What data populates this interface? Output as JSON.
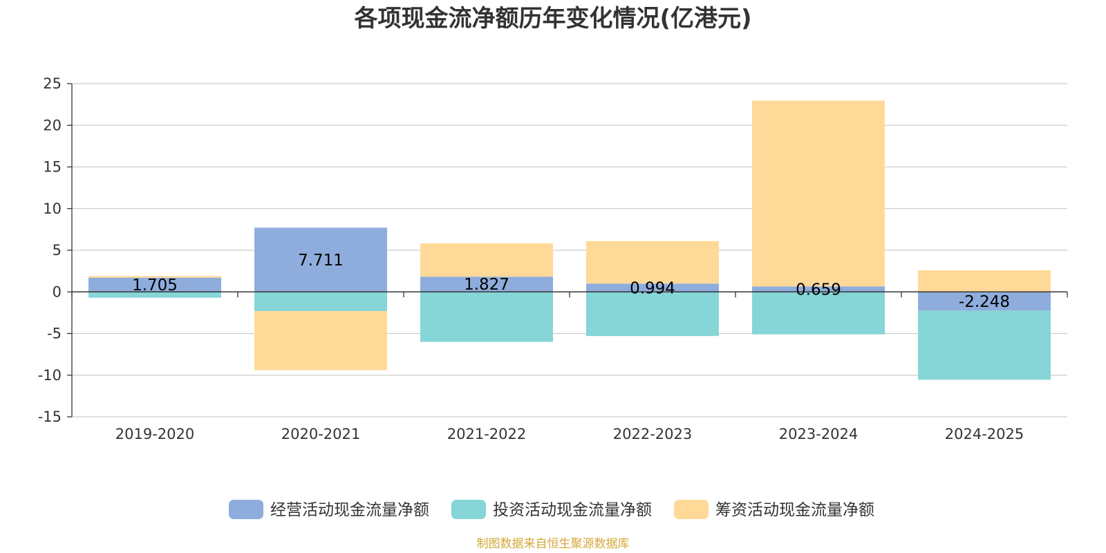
{
  "chart_data": {
    "type": "bar",
    "stacked": true,
    "title": "各项现金流净额历年变化情况(亿港元)",
    "categories": [
      "2019-2020",
      "2020-2021",
      "2021-2022",
      "2022-2023",
      "2023-2024",
      "2024-2025"
    ],
    "series": [
      {
        "name": "经营活动现金流量净额",
        "color": "#8eaddc",
        "values": [
          1.705,
          7.711,
          1.827,
          0.994,
          0.659,
          -2.248
        ],
        "labels": [
          "1.705",
          "7.711",
          "1.827",
          "0.994",
          "0.659",
          "-2.248"
        ]
      },
      {
        "name": "投资活动现金流量净额",
        "color": "#86d5d7",
        "values": [
          -0.7,
          -2.3,
          -6.0,
          -5.3,
          -5.1,
          -8.3
        ]
      },
      {
        "name": "筹资活动现金流量净额",
        "color": "#ffd998",
        "values": [
          0.2,
          -7.1,
          4.0,
          5.1,
          22.3,
          2.6
        ]
      }
    ],
    "yticks": [
      "25",
      "20",
      "15",
      "10",
      "5",
      "0",
      "-5",
      "-10",
      "-15"
    ],
    "ylim": [
      -15,
      25
    ],
    "grid": true,
    "legend_position": "bottom",
    "source": "制图数据来自恒生聚源数据库"
  }
}
